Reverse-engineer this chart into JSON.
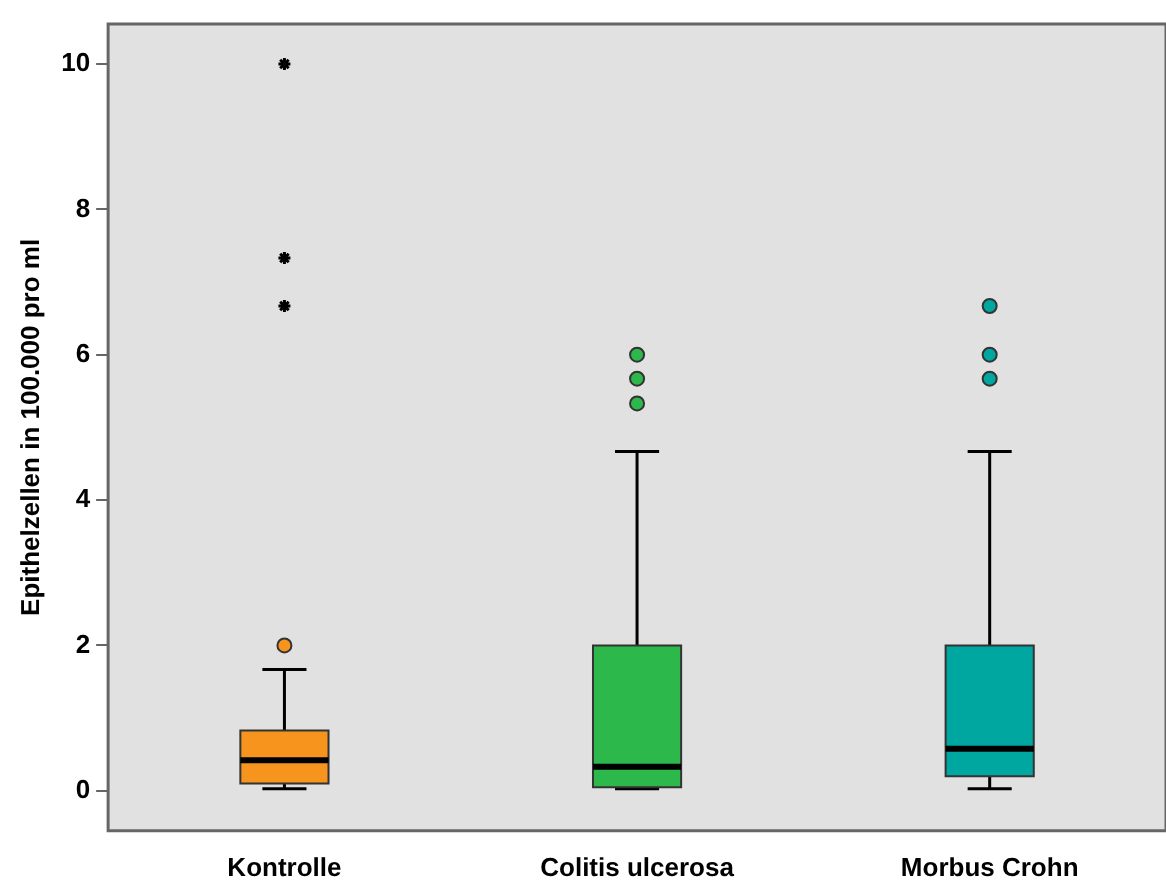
{
  "chart_data": {
    "type": "box",
    "ylabel": "Epithelzellen in 100.000 pro ml",
    "categories": [
      "Kontrolle",
      "Colitis ulcerosa",
      "Morbus Crohn"
    ],
    "colors": [
      "#f7941d",
      "#2db84b",
      "#00a6a0"
    ],
    "boxes": [
      {
        "low": 0.03,
        "q1": 0.1,
        "median": 0.42,
        "q3": 0.83,
        "high": 1.67,
        "outliers": [
          2
        ]
      },
      {
        "low": 0.03,
        "q1": 0.05,
        "median": 0.33,
        "q3": 2,
        "high": 4.67,
        "outliers": [
          5.33,
          5.67,
          6
        ]
      },
      {
        "low": 0.03,
        "q1": 0.2,
        "median": 0.58,
        "q3": 2,
        "high": 4.67,
        "outliers": [
          5.67,
          6,
          6.67
        ]
      }
    ],
    "series": [
      {
        "type": "scatter",
        "color": "#000000",
        "marker": "cross",
        "x": [
          "Kontrolle",
          "Kontrolle",
          "Kontrolle"
        ],
        "values": [
          6.67,
          7.33,
          10
        ]
      }
    ],
    "ylim": [
      -0.55,
      10.55
    ],
    "yticks": [
      0,
      2,
      4,
      6,
      8,
      10
    ],
    "grid": false,
    "legend": false
  }
}
